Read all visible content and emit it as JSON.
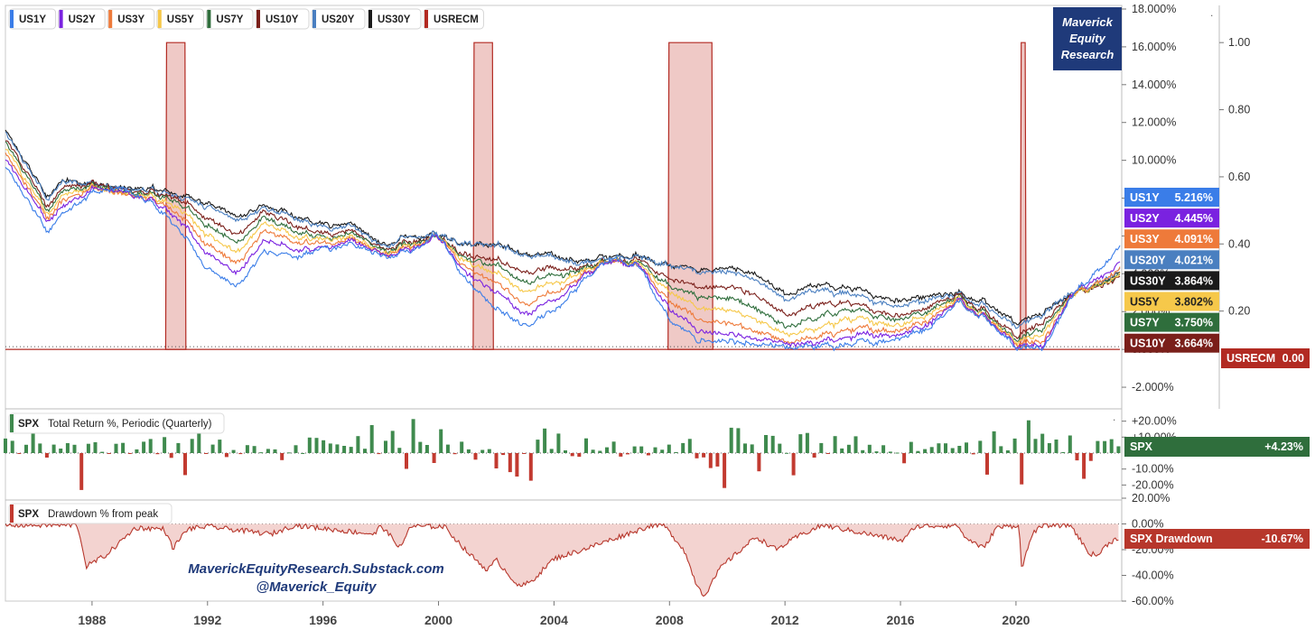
{
  "brand": {
    "line1": "Maverick",
    "line2": "Equity",
    "line3": "Research",
    "bg": "#1f3a7a"
  },
  "watermark": {
    "line1": "MaverickEquityResearch.Substack.com",
    "line2": "@Maverick_Equity"
  },
  "legend": [
    "US1Y",
    "US2Y",
    "US3Y",
    "US5Y",
    "US7Y",
    "US10Y",
    "US20Y",
    "US30Y",
    "USRECM"
  ],
  "colors": {
    "US1Y": "#3a7de8",
    "US2Y": "#7a22e0",
    "US3Y": "#ee7a3a",
    "US5Y": "#f6c84a",
    "US7Y": "#2f6e3c",
    "US10Y": "#7a1f1a",
    "US20Y": "#4a7fc0",
    "US30Y": "#1a1a1a",
    "USRECM": "#b22a22",
    "up": "#3f8a4e",
    "down": "#c23a30"
  },
  "chart_data": [
    {
      "type": "line",
      "title": "",
      "x_range": [
        1985,
        2023.6
      ],
      "ylim": [
        -3.0,
        18.0
      ],
      "yticks_left_pct": [
        "18.000%",
        "16.000%",
        "14.000%",
        "12.000%",
        "10.000%",
        "8.000%",
        "6.000%",
        "4.000%",
        "2.000%",
        "0.000%",
        "-2.000%"
      ],
      "ylim_right": [
        -0.0833,
        1.1
      ],
      "yticks_right": [
        "1.00",
        "0.80",
        "0.60",
        "0.40",
        "0.20"
      ],
      "x_ticks": [
        "1988",
        "1992",
        "1996",
        "2000",
        "2004",
        "2008",
        "2012",
        "2016",
        "2020"
      ],
      "anchors_years": [
        1985,
        1986.5,
        1987,
        1988,
        1989,
        1990,
        1991,
        1992,
        1993,
        1994,
        1995,
        1996,
        1997,
        1998,
        1999,
        2000,
        2001,
        2002,
        2003,
        2004,
        2005,
        2006,
        2007,
        2008,
        2009,
        2010,
        2011,
        2012,
        2013,
        2014,
        2015,
        2016,
        2017,
        2018,
        2019,
        2020,
        2021,
        2022,
        2023.5
      ],
      "series": [
        {
          "name": "US30Y",
          "last": "3.864%",
          "values": [
            11.5,
            8.0,
            9.0,
            8.8,
            8.5,
            8.5,
            8.2,
            7.8,
            7.0,
            7.6,
            7.0,
            6.6,
            6.7,
            5.5,
            5.9,
            6.1,
            5.6,
            5.6,
            5.0,
            5.0,
            4.6,
            5.0,
            4.9,
            4.4,
            4.2,
            4.3,
            3.9,
            2.9,
            3.4,
            3.3,
            2.9,
            2.6,
            2.9,
            3.0,
            2.5,
            1.4,
            2.0,
            3.0,
            3.9
          ]
        },
        {
          "name": "US20Y",
          "last": "4.021%",
          "values": [
            11.4,
            7.9,
            8.9,
            8.8,
            8.5,
            8.4,
            8.1,
            7.6,
            6.8,
            7.5,
            6.9,
            6.4,
            6.6,
            5.4,
            5.9,
            6.1,
            5.6,
            5.6,
            4.9,
            4.9,
            4.5,
            4.9,
            4.9,
            4.4,
            4.1,
            4.1,
            3.6,
            2.6,
            3.1,
            3.0,
            2.6,
            2.3,
            2.7,
            2.9,
            2.3,
            1.2,
            1.9,
            3.1,
            4.0
          ]
        },
        {
          "name": "US10Y",
          "last": "3.664%",
          "values": [
            11.1,
            7.5,
            8.6,
            8.8,
            8.4,
            8.3,
            8.0,
            7.0,
            6.0,
            7.3,
            6.5,
            6.1,
            6.3,
            5.3,
            5.6,
            6.0,
            5.0,
            4.8,
            4.0,
            4.3,
            4.3,
            4.8,
            4.7,
            3.7,
            3.3,
            3.3,
            2.8,
            1.8,
            2.3,
            2.5,
            2.1,
            1.8,
            2.3,
            2.9,
            2.0,
            0.7,
            1.5,
            3.0,
            3.7
          ]
        },
        {
          "name": "US7Y",
          "last": "3.750%",
          "values": [
            10.9,
            7.3,
            8.4,
            8.7,
            8.3,
            8.2,
            7.8,
            6.6,
            5.6,
            7.0,
            6.2,
            5.9,
            6.2,
            5.2,
            5.5,
            6.0,
            4.8,
            4.5,
            3.5,
            3.9,
            4.2,
            4.8,
            4.6,
            3.3,
            2.8,
            2.7,
            2.1,
            1.2,
            1.6,
            2.1,
            1.9,
            1.6,
            2.1,
            2.8,
            1.9,
            0.5,
            1.2,
            3.0,
            3.8
          ]
        },
        {
          "name": "US5Y",
          "last": "3.802%",
          "values": [
            10.6,
            7.1,
            8.2,
            8.6,
            8.2,
            8.1,
            7.5,
            6.1,
            5.1,
            6.7,
            5.9,
            5.8,
            6.0,
            5.1,
            5.4,
            6.0,
            4.6,
            4.1,
            3.0,
            3.5,
            4.1,
            4.8,
            4.5,
            3.0,
            2.2,
            2.1,
            1.5,
            0.8,
            1.0,
            1.6,
            1.5,
            1.3,
            1.9,
            2.7,
            1.8,
            0.4,
            0.9,
            3.0,
            3.8
          ]
        },
        {
          "name": "US3Y",
          "last": "4.091%",
          "values": [
            10.3,
            6.9,
            7.9,
            8.6,
            8.2,
            8.0,
            7.2,
            5.6,
            4.5,
            6.3,
            5.6,
            5.6,
            5.9,
            5.0,
            5.3,
            6.0,
            4.3,
            3.6,
            2.3,
            3.0,
            3.9,
            4.8,
            4.4,
            2.5,
            1.6,
            1.4,
            0.9,
            0.4,
            0.6,
            1.0,
            1.1,
            1.0,
            1.6,
            2.6,
            1.7,
            0.3,
            0.5,
            3.0,
            4.1
          ]
        },
        {
          "name": "US2Y",
          "last": "4.445%",
          "values": [
            10.0,
            6.7,
            7.6,
            8.5,
            8.3,
            7.9,
            6.9,
            5.1,
            4.0,
            5.8,
            5.2,
            5.4,
            5.8,
            5.0,
            5.2,
            6.0,
            4.0,
            3.1,
            1.8,
            2.6,
            3.8,
            4.8,
            4.4,
            2.1,
            1.0,
            0.8,
            0.5,
            0.3,
            0.3,
            0.6,
            0.8,
            0.8,
            1.4,
            2.6,
            1.7,
            0.2,
            0.3,
            3.1,
            4.4
          ]
        },
        {
          "name": "US1Y",
          "last": "5.216%",
          "values": [
            9.6,
            6.2,
            7.2,
            8.3,
            8.5,
            7.8,
            6.4,
            4.3,
            3.3,
            5.2,
            4.8,
            5.3,
            5.6,
            4.9,
            5.1,
            6.1,
            3.6,
            2.2,
            1.2,
            2.0,
            3.6,
            4.9,
            4.3,
            1.5,
            0.5,
            0.4,
            0.2,
            0.15,
            0.15,
            0.2,
            0.4,
            0.6,
            1.2,
            2.5,
            1.6,
            0.1,
            0.1,
            3.0,
            5.2
          ]
        }
      ],
      "recessions": [
        [
          1990.55,
          1991.25
        ],
        [
          2001.2,
          2001.9
        ],
        [
          2007.95,
          2009.5
        ],
        [
          2020.15,
          2020.35
        ]
      ],
      "usrecm_last": "0.00"
    },
    {
      "type": "bar",
      "series_label": "SPX",
      "title": "Total Return %, Periodic (Quarterly)",
      "ylim": [
        -26,
        26
      ],
      "yticks": [
        "+20.00%",
        "+10.00%",
        "-10.00%",
        "-20.00%"
      ],
      "last": "+4.23%",
      "quarterly_returns": [
        9.1,
        7.7,
        -0.2,
        5.2,
        14.2,
        6.0,
        -2.8,
        5.3,
        2.8,
        6.2,
        5.2,
        -23.1,
        5.8,
        6.8,
        0.8,
        -0.5,
        5.8,
        6.4,
        -0.4,
        2.3,
        7.1,
        8.8,
        -0.7,
        10.0,
        -3.0,
        6.3,
        -13.8,
        8.9,
        14.5,
        -0.2,
        5.3,
        8.4,
        -2.5,
        1.9,
        -0.6,
        5.0,
        4.4,
        0.5,
        2.6,
        2.3,
        -4.4,
        0.4,
        4.9,
        0.0,
        9.7,
        9.5,
        8.0,
        6.0,
        5.4,
        4.5,
        3.9,
        10.6,
        2.7,
        17.5,
        -0.6,
        7.7,
        13.9,
        3.3,
        -9.9,
        21.3,
        7.0,
        5.1,
        -6.2,
        14.9,
        5.3,
        -0.7,
        7.1,
        2.3,
        -4.1,
        2.0,
        2.5,
        -9.6,
        -1.2,
        -11.9,
        -14.7,
        -0.4,
        -17.3,
        8.4,
        15.4,
        2.6,
        12.2,
        1.7,
        -1.9,
        -2.3,
        9.2,
        2.1,
        1.4,
        3.6,
        7.2,
        -2.2,
        -0.8,
        4.2,
        4.2,
        -1.4,
        3.6,
        2.1,
        5.3,
        0.6,
        6.3,
        8.9,
        -3.3,
        -2.7,
        -9.4,
        -8.4,
        -21.9,
        15.9,
        15.6,
        6.0,
        5.4,
        -11.4,
        11.3,
        10.8,
        5.9,
        0.1,
        -13.9,
        11.8,
        12.6,
        -2.8,
        6.3,
        -0.4,
        10.6,
        2.9,
        5.2,
        10.5,
        1.8,
        5.2,
        1.1,
        4.9,
        0.9,
        0.3,
        -6.4,
        7.0,
        1.3,
        2.5,
        3.8,
        6.1,
        6.1,
        3.1,
        4.5,
        6.6,
        -0.8,
        7.7,
        -13.5,
        13.6,
        4.3,
        1.7,
        9.1,
        -19.6,
        20.5,
        8.9,
        12.1,
        6.2,
        8.5,
        0.6,
        11.0,
        -4.6,
        -16.1,
        -4.9,
        7.6,
        7.5,
        8.7,
        4.23
      ]
    },
    {
      "type": "area",
      "series_label": "SPX",
      "title": "Drawdown % from peak",
      "ylim": [
        -60,
        20
      ],
      "yticks": [
        "20.00%",
        "0.00%",
        "-20.00%",
        "-40.00%",
        "-60.00%"
      ],
      "last": "-10.67%",
      "legend_label": "SPX Drawdown",
      "anchors": [
        [
          1985,
          -1
        ],
        [
          1987.5,
          -1
        ],
        [
          1987.8,
          -33
        ],
        [
          1988.5,
          -24
        ],
        [
          1989.5,
          -3
        ],
        [
          1990.5,
          -4
        ],
        [
          1990.8,
          -19
        ],
        [
          1991.3,
          -4
        ],
        [
          1992,
          -2
        ],
        [
          1994.2,
          -8
        ],
        [
          1995,
          -1
        ],
        [
          1997.8,
          -8
        ],
        [
          1998,
          -1
        ],
        [
          1998.7,
          -19
        ],
        [
          1999,
          -2
        ],
        [
          2000.2,
          -2
        ],
        [
          2001.0,
          -22
        ],
        [
          2001.7,
          -36
        ],
        [
          2002.0,
          -28
        ],
        [
          2002.8,
          -49
        ],
        [
          2003.2,
          -45
        ],
        [
          2004,
          -27
        ],
        [
          2005,
          -20
        ],
        [
          2006,
          -12
        ],
        [
          2007.4,
          -1
        ],
        [
          2007.8,
          -1
        ],
        [
          2008.5,
          -20
        ],
        [
          2008.9,
          -45
        ],
        [
          2009.2,
          -56
        ],
        [
          2009.8,
          -33
        ],
        [
          2011,
          -10
        ],
        [
          2011.7,
          -20
        ],
        [
          2012.5,
          -9
        ],
        [
          2013.3,
          -1
        ],
        [
          2015.6,
          -11
        ],
        [
          2016.1,
          -13
        ],
        [
          2016.5,
          -2
        ],
        [
          2018,
          -1
        ],
        [
          2018.2,
          -10
        ],
        [
          2018.9,
          -19
        ],
        [
          2019.3,
          -3
        ],
        [
          2020.1,
          -1
        ],
        [
          2020.2,
          -34
        ],
        [
          2020.6,
          -6
        ],
        [
          2021,
          -1
        ],
        [
          2021.9,
          -1
        ],
        [
          2022.5,
          -22
        ],
        [
          2022.8,
          -25
        ],
        [
          2023.2,
          -15
        ],
        [
          2023.55,
          -10.67
        ]
      ]
    }
  ]
}
